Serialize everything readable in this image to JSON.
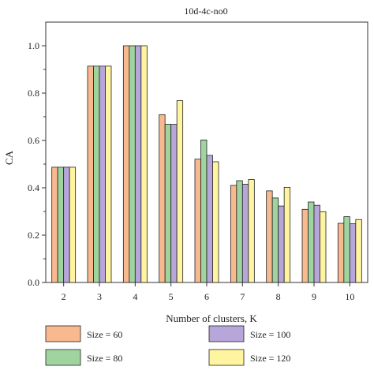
{
  "chart_data": {
    "type": "bar",
    "title": "10d-4c-no0",
    "xlabel": "Number of clusters, K",
    "ylabel": "CA",
    "categories": [
      "2",
      "3",
      "4",
      "5",
      "6",
      "7",
      "8",
      "9",
      "10"
    ],
    "ylim": [
      0,
      1.1
    ],
    "yticks": [
      "0.0",
      "0.2",
      "0.4",
      "0.6",
      "0.8",
      "1.0"
    ],
    "grid": false,
    "legend_position": "bottom",
    "series": [
      {
        "name": "Size = 60",
        "color": "#f8b98f",
        "values": [
          0.487,
          0.914,
          1.0,
          0.709,
          0.521,
          0.41,
          0.387,
          0.309,
          0.25
        ]
      },
      {
        "name": "Size = 80",
        "color": "#9fd49f",
        "values": [
          0.487,
          0.914,
          1.0,
          0.668,
          0.602,
          0.43,
          0.357,
          0.34,
          0.278
        ]
      },
      {
        "name": "Size = 100",
        "color": "#b7a6d9",
        "values": [
          0.487,
          0.914,
          1.0,
          0.668,
          0.537,
          0.415,
          0.323,
          0.326,
          0.248
        ]
      },
      {
        "name": "Size = 120",
        "color": "#fff5a0",
        "values": [
          0.487,
          0.914,
          1.0,
          0.768,
          0.51,
          0.435,
          0.402,
          0.299,
          0.266
        ]
      }
    ]
  }
}
